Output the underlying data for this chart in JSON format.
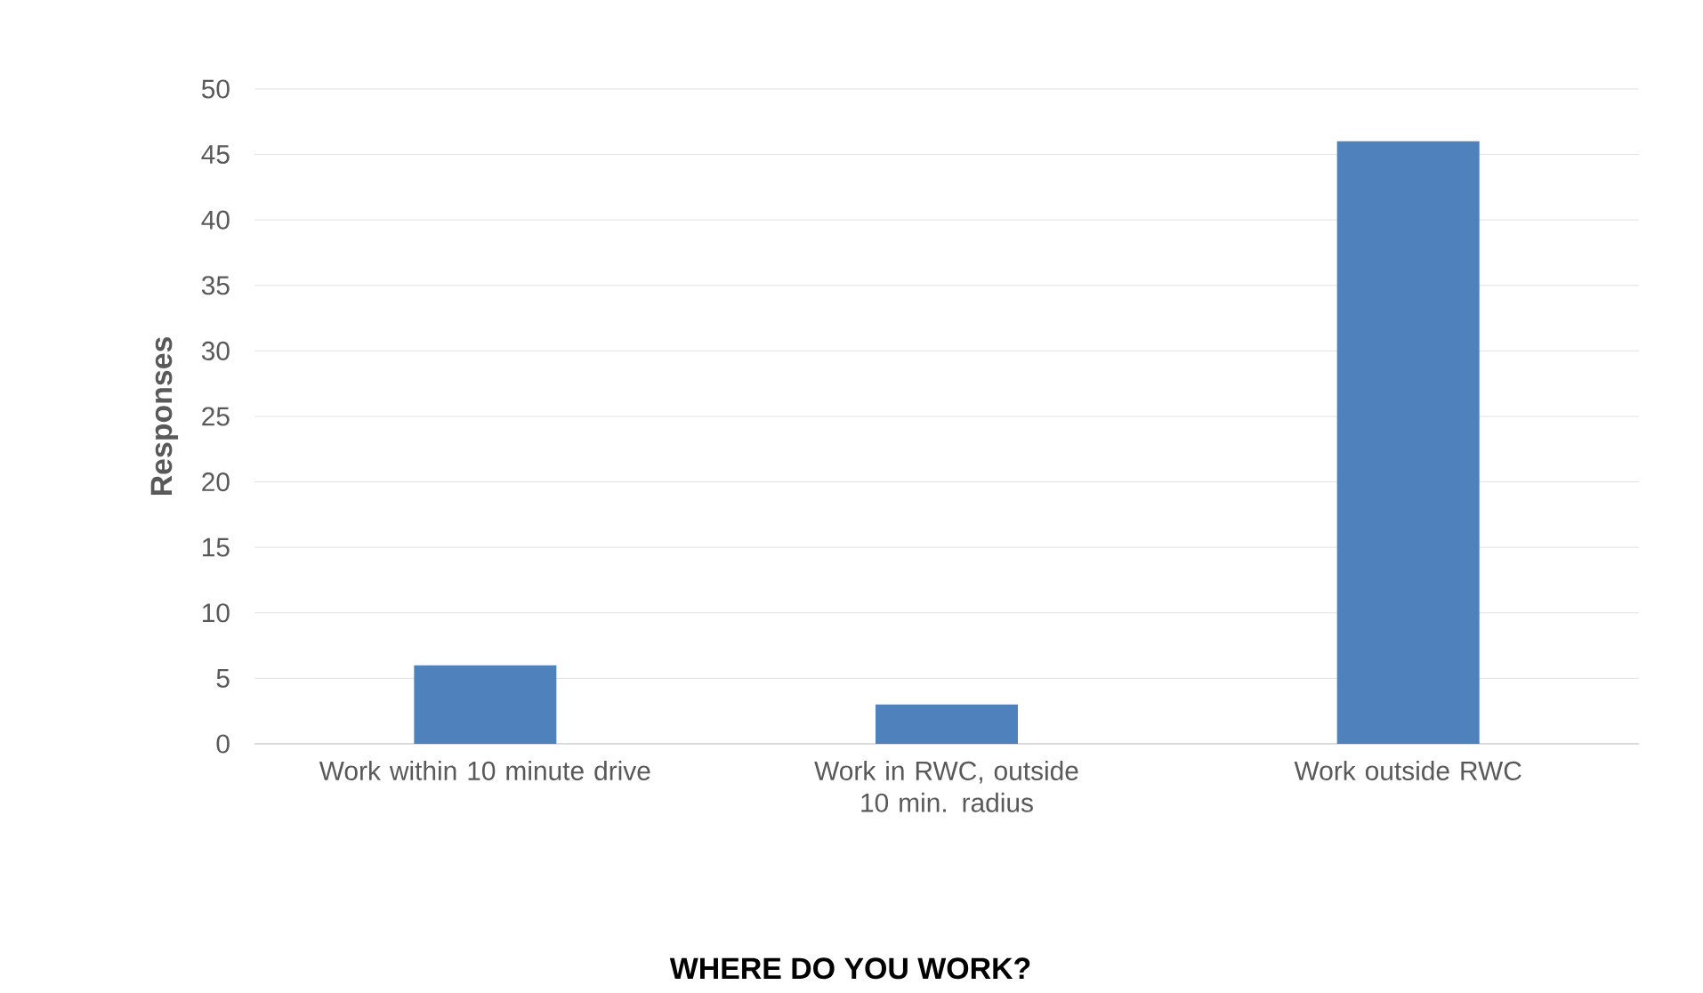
{
  "chart_data": {
    "type": "bar",
    "title": "WHERE DO YOU WORK?",
    "ylabel": "Responses",
    "categories": [
      "Work within 10 minute drive",
      "Work in RWC, outside 10 min. radius",
      "Work outside RWC"
    ],
    "values": [
      6,
      3,
      46
    ],
    "color": "#4f81bd",
    "ylim": [
      0,
      50
    ],
    "yticks": [
      0,
      5,
      10,
      15,
      20,
      25,
      30,
      35,
      40,
      45,
      50
    ],
    "grid": "y"
  }
}
